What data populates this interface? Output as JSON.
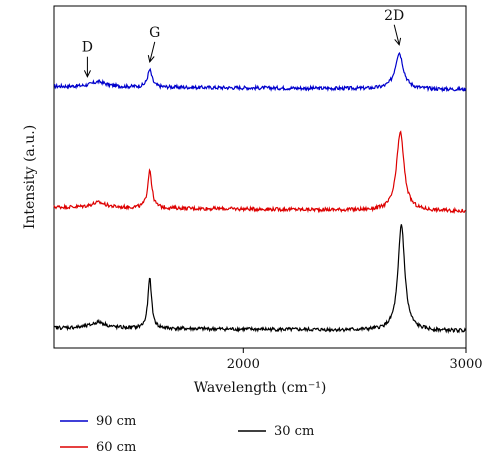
{
  "chart_data": {
    "type": "line",
    "title": "",
    "xlabel": "Wavelength (cm⁻¹)",
    "ylabel": "Intensity (a.u.)",
    "xlim": [
      1150,
      3000
    ],
    "x_ticks": [
      2000,
      3000
    ],
    "x_tick_labels": [
      "2000",
      "3000"
    ],
    "y_ticks": [],
    "grid": false,
    "legend_position": "bottom",
    "colors": {
      "90cm": "#0000cc",
      "60cm": "#dd0000",
      "30cm": "#000000"
    },
    "series": [
      {
        "name": "90 cm",
        "color": "#0000cc",
        "offset": 2.6,
        "baseline_slope": -0.03,
        "noise": 0.018,
        "peaks": [
          {
            "x": 1350,
            "height": 0.05,
            "width": 40
          },
          {
            "x": 1580,
            "height": 0.17,
            "width": 12
          },
          {
            "x": 2700,
            "height": 0.36,
            "width": 22
          }
        ]
      },
      {
        "name": "60 cm",
        "color": "#dd0000",
        "offset": 1.4,
        "baseline_slope": -0.04,
        "noise": 0.018,
        "peaks": [
          {
            "x": 1350,
            "height": 0.05,
            "width": 40
          },
          {
            "x": 1580,
            "height": 0.38,
            "width": 11
          },
          {
            "x": 2705,
            "height": 0.78,
            "width": 20
          }
        ]
      },
      {
        "name": "30 cm",
        "color": "#000000",
        "offset": 0.2,
        "baseline_slope": -0.03,
        "noise": 0.018,
        "peaks": [
          {
            "x": 1350,
            "height": 0.06,
            "width": 40
          },
          {
            "x": 1580,
            "height": 0.5,
            "width": 10
          },
          {
            "x": 2710,
            "height": 1.05,
            "width": 18
          }
        ]
      }
    ],
    "annotations": [
      {
        "label": "D",
        "x": 1300,
        "series": 0
      },
      {
        "label": "G",
        "x": 1580,
        "series": 0
      },
      {
        "label": "2D",
        "x": 2700,
        "series": 0
      }
    ],
    "legend": [
      {
        "label": "90 cm",
        "color": "#0000cc"
      },
      {
        "label": "60 cm",
        "color": "#dd0000"
      },
      {
        "label": "30 cm",
        "color": "#000000"
      }
    ]
  }
}
